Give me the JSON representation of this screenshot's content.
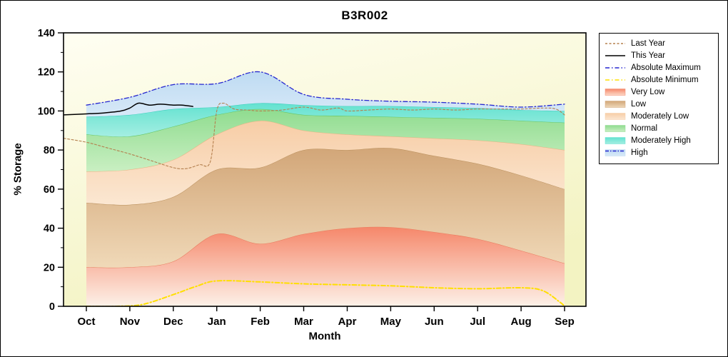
{
  "chart_data": {
    "type": "area",
    "title": "B3R002",
    "xlabel": "Month",
    "ylabel": "% Storage",
    "ylim": [
      0,
      140
    ],
    "y_ticks": [
      0,
      20,
      40,
      60,
      80,
      100,
      120,
      140
    ],
    "months": [
      "Oct",
      "Nov",
      "Dec",
      "Jan",
      "Feb",
      "Mar",
      "Apr",
      "May",
      "Jun",
      "Jul",
      "Aug",
      "Sep"
    ],
    "plot_bg": {
      "from": "#fffef2",
      "to": "#f3f3c2"
    },
    "bands": [
      {
        "name": "Very Low",
        "upper": [
          20,
          20,
          23,
          37,
          32,
          37,
          40,
          40.5,
          38,
          34.5,
          28.5,
          22
        ],
        "color_top": "#f5876a",
        "color_bottom": "#fdf1e8",
        "edge": "#e8795c"
      },
      {
        "name": "Low",
        "upper": [
          53,
          52,
          56,
          70,
          71,
          80,
          80,
          81,
          77,
          73,
          67,
          60
        ],
        "color_top": "#d2a678",
        "color_bottom": "#f0d9b8",
        "edge": "#b98f5c"
      },
      {
        "name": "Moderately Low",
        "upper": [
          69,
          70,
          75,
          88,
          95,
          90,
          88,
          87,
          86,
          85,
          83,
          80
        ],
        "color_top": "#f7cda6",
        "color_bottom": "#fbe7d2",
        "edge": "#e7b382"
      },
      {
        "name": "Normal",
        "upper": [
          88,
          87,
          92,
          98,
          101,
          98,
          97.5,
          97,
          96.5,
          96,
          95,
          94
        ],
        "color_top": "#8fdc8f",
        "color_bottom": "#c9efc2",
        "edge": "#63c463"
      },
      {
        "name": "Moderately High",
        "upper": [
          97,
          98,
          101,
          102,
          104,
          103,
          102.5,
          102.5,
          102,
          101.5,
          100.5,
          100
        ],
        "color_top": "#63e2d0",
        "color_bottom": "#a4eee2",
        "edge": "#38cdbb"
      },
      {
        "name": "High",
        "upper": [
          103,
          107,
          113.5,
          114,
          120,
          108.5,
          106,
          105,
          104.5,
          103.5,
          102,
          103.5
        ],
        "color_top": "#bedbf2",
        "color_bottom": "#d8e9f8",
        "edge": null
      }
    ],
    "lines": [
      {
        "name": "Absolute Minimum",
        "x": [
          0,
          0.7,
          1.3,
          2,
          2.5,
          3,
          4,
          5,
          6,
          7,
          8,
          9,
          10,
          10.5,
          10.9,
          11
        ],
        "values": [
          0,
          0,
          1,
          6,
          10,
          13,
          12.5,
          11.5,
          11,
          10.5,
          9.5,
          9,
          9.5,
          8,
          2,
          0
        ],
        "color": "#ffdf00",
        "width": 2,
        "dash": "6 3 1.5 3"
      },
      {
        "name": "Absolute Maximum",
        "x": [
          0,
          1,
          2,
          3,
          4,
          5,
          6,
          7,
          8,
          9,
          10,
          11
        ],
        "values": [
          103,
          107,
          113.5,
          114,
          120,
          108.5,
          106,
          105,
          104.5,
          103.5,
          102,
          103.5
        ],
        "color": "#2626cf",
        "width": 1.3,
        "dash": "6 3 1.5 3"
      },
      {
        "name": "Last Year",
        "x": [
          -0.52,
          0,
          0.5,
          1,
          1.5,
          2,
          2.3,
          2.6,
          2.85,
          3,
          3.15,
          3.4,
          3.7,
          4,
          4.5,
          5,
          5.4,
          5.8,
          6,
          6.5,
          7,
          7.5,
          8,
          8.5,
          9,
          9.5,
          10,
          10.5,
          10.8,
          11
        ],
        "values": [
          86,
          84,
          81,
          78,
          74.5,
          71,
          70.5,
          72.5,
          74,
          100,
          104,
          101,
          100.5,
          100,
          100.5,
          102,
          100.5,
          101.5,
          100,
          100.5,
          101,
          100.5,
          101,
          100.5,
          101,
          101,
          101,
          101.5,
          101,
          98
        ],
        "color": "#b5804f",
        "width": 1.1,
        "dash": "3 2.5"
      },
      {
        "name": "This Year",
        "x": [
          -0.52,
          0,
          0.4,
          0.8,
          1,
          1.2,
          1.45,
          1.7,
          2,
          2.2,
          2.45
        ],
        "values": [
          98,
          98.5,
          99,
          100,
          101.5,
          104,
          103,
          103.5,
          103,
          103,
          102.3
        ],
        "color": "#000000",
        "width": 1.5,
        "dash": ""
      }
    ]
  },
  "legend": {
    "items": [
      {
        "label": "Last Year",
        "sample": "line",
        "color": "#b5804f",
        "dash": "3 2.5"
      },
      {
        "label": "This Year",
        "sample": "line",
        "color": "#000000",
        "dash": ""
      },
      {
        "label": "Absolute Maximum",
        "sample": "line",
        "color": "#2626cf",
        "dash": "6 3 1.5 3"
      },
      {
        "label": "Absolute Minimum",
        "sample": "line",
        "color": "#ffdf00",
        "dash": "6 3 1.5 3"
      },
      {
        "label": "Very Low",
        "sample": "band",
        "color": "#f5876a",
        "color2": "#fdd9c8"
      },
      {
        "label": "Low",
        "sample": "band",
        "color": "#d2a678",
        "color2": "#eed7b8"
      },
      {
        "label": "Moderately Low",
        "sample": "band",
        "color": "#f7cda6",
        "color2": "#fbe7d2"
      },
      {
        "label": "Normal",
        "sample": "band",
        "color": "#8fdc8f",
        "color2": "#c9efc2"
      },
      {
        "label": "Moderately High",
        "sample": "band",
        "color": "#63e2d0",
        "color2": "#a4eee2"
      },
      {
        "label": "High",
        "sample": "band-line",
        "color": "#bedbf2",
        "color2": "#d8e9f8",
        "line_color": "#2626cf",
        "dash": "5 2 1.5 2"
      }
    ]
  }
}
